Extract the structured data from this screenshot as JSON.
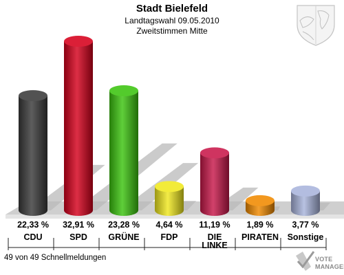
{
  "chart_data": {
    "type": "bar",
    "title": "Stadt Bielefeld",
    "subtitle_lines": [
      "Landtagswahl 09.05.2010",
      "Zweitstimmen Mitte"
    ],
    "categories": [
      "CDU",
      "SPD",
      "GRÜNE",
      "FDP",
      "DIE LINKE",
      "PIRATEN",
      "Sonstige"
    ],
    "category_lines": [
      [
        "CDU"
      ],
      [
        "SPD"
      ],
      [
        "GRÜNE"
      ],
      [
        "FDP"
      ],
      [
        "DIE",
        "LINKE"
      ],
      [
        "PIRATEN"
      ],
      [
        "Sonstige"
      ]
    ],
    "values": [
      22.33,
      32.91,
      23.28,
      4.64,
      11.19,
      1.89,
      3.77
    ],
    "value_labels": [
      "22,33 %",
      "32,91 %",
      "23,28 %",
      "4,64 %",
      "11,19 %",
      "1,89 %",
      "3,77 %"
    ],
    "colors": [
      "#3a3a3a",
      "#d6001c",
      "#3cc40f",
      "#f0e81e",
      "#c8184a",
      "#f08a00",
      "#a9b4dc"
    ],
    "ylim": [
      0,
      35
    ],
    "xlabel": "",
    "ylabel": "",
    "legend": "none",
    "grid": false
  },
  "footer": {
    "status": "49 von 49 Schnellmeldungen"
  },
  "logo": {
    "line1": "VOTE",
    "line2": "MANAGER"
  },
  "emblem": {
    "icon": "coat-of-arms-icon"
  }
}
